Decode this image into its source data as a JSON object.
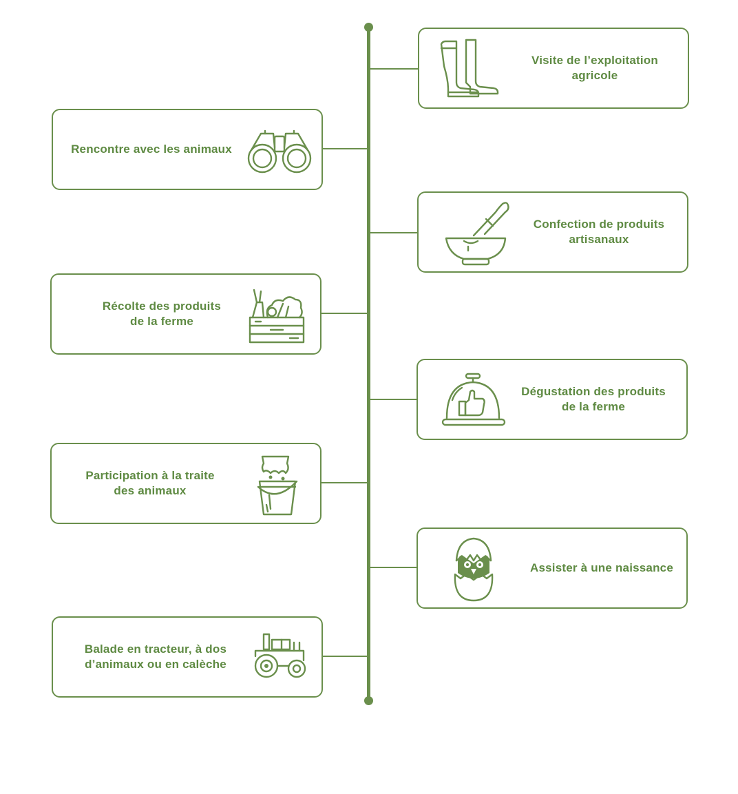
{
  "accent_color": "#6a8f4c",
  "right_items": [
    {
      "label": "Visite de l’exploitation\nagricole",
      "icon": "boots-icon"
    },
    {
      "label": "Confection de produits\nartisanaux",
      "icon": "mortar-pestle-icon"
    },
    {
      "label": "Dégustation des produits\nde la ferme",
      "icon": "food-cloche-thumbs-up-icon"
    },
    {
      "label": "Assister à une naissance",
      "icon": "hatching-chick-icon"
    }
  ],
  "left_items": [
    {
      "label": "Rencontre avec les animaux",
      "icon": "binoculars-icon"
    },
    {
      "label": "Récolte des produits\nde la ferme",
      "icon": "vegetable-crate-icon"
    },
    {
      "label": "Participation à la traite\ndes animaux",
      "icon": "milk-bucket-icon"
    },
    {
      "label": "Balade en tracteur, à dos\nd’animaux ou en calèche",
      "icon": "tractor-icon"
    }
  ]
}
